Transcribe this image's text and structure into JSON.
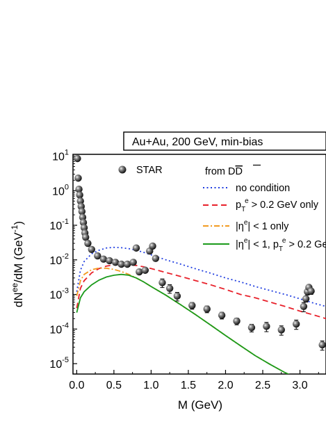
{
  "chart_data": {
    "type": "line",
    "title": "Au+Au, 200 GeV, min-bias",
    "xlabel": "M (GeV)",
    "ylabel_parts": {
      "main": "dN",
      "sup": "ee",
      "mid": "/dM (GeV",
      "sup2": "-1",
      "end": ")"
    },
    "xlim": [
      -0.05,
      3.35
    ],
    "ylim_log10": [
      -5.3,
      1.05
    ],
    "yscale": "log",
    "x_ticks": [
      "0.0",
      "0.5",
      "1.0",
      "1.5",
      "2.0",
      "2.5",
      "3.0"
    ],
    "x_tick_values": [
      0.0,
      0.5,
      1.0,
      1.5,
      2.0,
      2.5,
      3.0
    ],
    "y_tick_exponents": [
      1,
      0,
      -1,
      -2,
      -3,
      -4,
      -5
    ],
    "y_tick_base": "10",
    "legend_header": {
      "prefix": "from D",
      "suffix": "D"
    },
    "series": [
      {
        "name": "no condition",
        "style": "dotted",
        "color": "#1f3de0",
        "x": [
          0.0,
          0.05,
          0.1,
          0.2,
          0.3,
          0.4,
          0.5,
          0.6,
          0.7,
          0.8,
          0.9,
          1.0,
          1.2,
          1.4,
          1.6,
          1.8,
          2.0,
          2.2,
          2.4,
          2.6,
          2.8,
          3.0,
          3.2,
          3.35
        ],
        "y": [
          0.0012,
          0.005,
          0.009,
          0.015,
          0.019,
          0.022,
          0.023,
          0.0225,
          0.021,
          0.019,
          0.0165,
          0.014,
          0.01,
          0.0075,
          0.0055,
          0.0041,
          0.003,
          0.0023,
          0.0017,
          0.0013,
          0.001,
          0.00075,
          0.00055,
          0.00045
        ]
      },
      {
        "name_parts": {
          "a": "p",
          "sub": "T",
          "sup": "e",
          "b": " > 0.2 GeV only"
        },
        "style": "dashed",
        "color": "#e8202a",
        "x": [
          0.0,
          0.05,
          0.1,
          0.2,
          0.3,
          0.4,
          0.5,
          0.6,
          0.7,
          0.8,
          0.9,
          1.0,
          1.2,
          1.4,
          1.6,
          1.8,
          2.0,
          2.2,
          2.4,
          2.6,
          2.8,
          3.0,
          3.2,
          3.35
        ],
        "y": [
          0.0004,
          0.0015,
          0.0025,
          0.0042,
          0.0056,
          0.0066,
          0.0072,
          0.0074,
          0.0073,
          0.0069,
          0.0063,
          0.0056,
          0.0043,
          0.0033,
          0.0025,
          0.0019,
          0.0014,
          0.001,
          0.0008,
          0.0006,
          0.00045,
          0.00033,
          0.00025,
          0.0002
        ]
      },
      {
        "name_parts": {
          "a": "|η",
          "sup": "e",
          "b": "| < 1 only"
        },
        "style": "dashdot",
        "color": "#f29a1f",
        "x": [
          0.0,
          0.05,
          0.1,
          0.2,
          0.3,
          0.4,
          0.5,
          0.6,
          0.7,
          0.8,
          0.9,
          1.0,
          1.2,
          1.4,
          1.6,
          1.8,
          2.0,
          2.2,
          2.4,
          2.6,
          2.8,
          3.0,
          3.2,
          3.35
        ],
        "y": [
          0.0009,
          0.0025,
          0.0038,
          0.0052,
          0.0058,
          0.0057,
          0.0053,
          0.0046,
          0.0038,
          0.003,
          0.0023,
          0.0017,
          0.00095,
          0.0005,
          0.00026,
          0.00013,
          6.5e-05,
          3.3e-05,
          1.7e-05,
          9.5e-06,
          5.5e-06,
          3.5e-06,
          2.4e-06,
          1.8e-06
        ]
      },
      {
        "name_parts": {
          "a": "|η",
          "sup": "e",
          "b": "| < 1, p",
          "sub": "T",
          "sup2": "e",
          "c": " > 0.2 GeV"
        },
        "style": "solid",
        "color": "#1a9a1a",
        "x": [
          0.0,
          0.05,
          0.1,
          0.2,
          0.3,
          0.4,
          0.5,
          0.6,
          0.7,
          0.8,
          0.9,
          1.0,
          1.2,
          1.4,
          1.6,
          1.8,
          2.0,
          2.2,
          2.4,
          2.6,
          2.8,
          3.0,
          3.2,
          3.35
        ],
        "y": [
          0.0003,
          0.0008,
          0.0012,
          0.0019,
          0.0026,
          0.0032,
          0.0036,
          0.0038,
          0.0036,
          0.003,
          0.0023,
          0.0017,
          0.00095,
          0.0005,
          0.00026,
          0.00013,
          6.5e-05,
          3.3e-05,
          1.7e-05,
          9.5e-06,
          5.5e-06,
          3.5e-06,
          2.4e-06,
          1.8e-06
        ]
      }
    ],
    "points": {
      "name": "STAR",
      "color": "#222222",
      "x": [
        0.01,
        0.02,
        0.03,
        0.04,
        0.05,
        0.06,
        0.07,
        0.08,
        0.09,
        0.1,
        0.11,
        0.12,
        0.15,
        0.2,
        0.28,
        0.36,
        0.44,
        0.52,
        0.6,
        0.68,
        0.76,
        0.8,
        0.84,
        0.92,
        0.98,
        1.02,
        1.06,
        1.15,
        1.25,
        1.35,
        1.55,
        1.75,
        1.95,
        2.15,
        2.35,
        2.55,
        2.75,
        2.95,
        3.05,
        3.08,
        3.1,
        3.12,
        3.15,
        3.3
      ],
      "y": [
        8.5,
        2.3,
        1.1,
        0.75,
        0.5,
        0.35,
        0.25,
        0.17,
        0.12,
        0.085,
        0.06,
        0.045,
        0.03,
        0.02,
        0.013,
        0.0105,
        0.0095,
        0.0085,
        0.0075,
        0.0075,
        0.0085,
        0.022,
        0.0045,
        0.005,
        0.018,
        0.025,
        0.011,
        0.0022,
        0.0015,
        0.0009,
        0.00048,
        0.00038,
        0.00025,
        0.00017,
        0.00011,
        0.00012,
        9.5e-05,
        0.00014,
        0.00045,
        0.00075,
        0.0012,
        0.0016,
        0.00125,
        3.5e-05
      ],
      "yerr_frac": [
        0.05,
        0.05,
        0.05,
        0.05,
        0.05,
        0.05,
        0.05,
        0.05,
        0.05,
        0.05,
        0.05,
        0.05,
        0.05,
        0.05,
        0.08,
        0.08,
        0.1,
        0.1,
        0.1,
        0.1,
        0.12,
        0.1,
        0.15,
        0.15,
        0.1,
        0.1,
        0.12,
        0.28,
        0.28,
        0.28,
        0.22,
        0.22,
        0.22,
        0.22,
        0.25,
        0.3,
        0.3,
        0.3,
        0.3,
        0.2,
        0.2,
        0.15,
        0.2,
        0.3
      ]
    }
  }
}
